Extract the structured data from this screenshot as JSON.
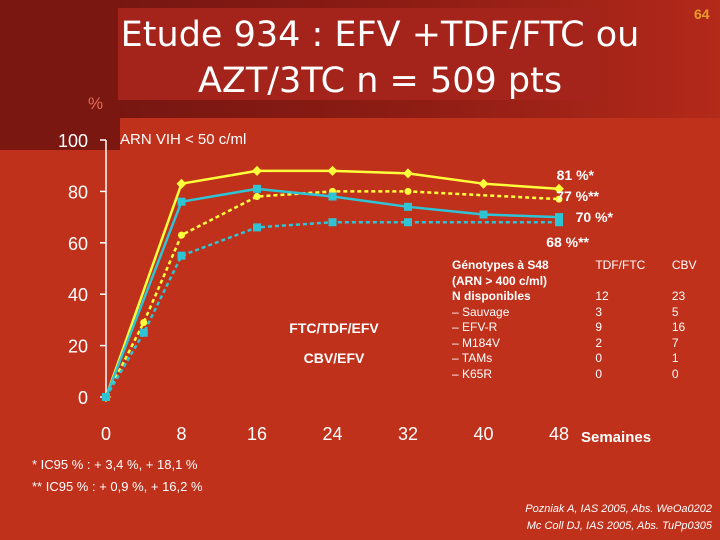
{
  "title": "Etude 934 : EFV +TDF/FTC ou AZT/3TC n = 509 pts",
  "slide_number": "64",
  "y_unit": "%",
  "subtitle": "ARN VIH < 50 c/ml",
  "colors": {
    "background": "#c0311c",
    "yellow": "#ffff3c",
    "cyan": "#2ec4d6"
  },
  "chart_data": {
    "type": "line",
    "x": [
      0,
      4,
      8,
      16,
      24,
      32,
      40,
      48
    ],
    "xticks": [
      "0",
      "8",
      "16",
      "24",
      "32",
      "40",
      "48"
    ],
    "xtick_values": [
      0,
      8,
      16,
      24,
      32,
      40,
      48
    ],
    "yticks": [
      "0",
      "20",
      "40",
      "60",
      "80",
      "100"
    ],
    "ylim": [
      0,
      100
    ],
    "xlim": [
      0,
      48
    ],
    "xlabel": "Semaines",
    "series": [
      {
        "values": [
          0,
          83,
          88,
          88,
          87,
          83,
          81
        ],
        "x": [
          0,
          8,
          16,
          24,
          32,
          40,
          48
        ],
        "color": "#ffff3c",
        "dash": false,
        "marker": "diamond"
      },
      {
        "values": [
          0,
          29,
          63,
          78,
          80,
          80,
          77
        ],
        "x": [
          0,
          4,
          8,
          16,
          24,
          32,
          48
        ],
        "color": "#ffff3c",
        "dash": true,
        "marker": "circle"
      },
      {
        "values": [
          0,
          76,
          81,
          78,
          74,
          71,
          70
        ],
        "x": [
          0,
          8,
          16,
          24,
          32,
          40,
          48
        ],
        "color": "#2ec4d6",
        "dash": false,
        "marker": "square"
      },
      {
        "values": [
          0,
          25,
          55,
          66,
          68,
          68,
          68
        ],
        "x": [
          0,
          4,
          8,
          16,
          24,
          32,
          48
        ],
        "color": "#2ec4d6",
        "dash": true,
        "marker": "square"
      }
    ],
    "line_labels": [
      "FTC/TDF/EFV",
      "CBV/EFV"
    ],
    "end_labels": [
      "81 %*",
      "77 %**",
      "70 %*",
      "68 %**"
    ]
  },
  "genotypes": {
    "header": [
      "Génotypes à S48 (ARN > 400 c/ml)",
      "TDF/FTC",
      "CBV"
    ],
    "rows": [
      [
        "N disponibles",
        "12",
        "23"
      ],
      [
        "– Sauvage",
        "3",
        "5"
      ],
      [
        "– EFV-R",
        "9",
        "16"
      ],
      [
        "– M184V",
        "2",
        "7"
      ],
      [
        "– TAMs",
        "0",
        "1"
      ],
      [
        "– K65R",
        "0",
        "0"
      ]
    ]
  },
  "footnotes": [
    "* IC95 % : + 3,4 %, + 18,1 %",
    "** IC95 % : + 0,9 %, + 16,2 %"
  ],
  "references": [
    "Pozniak A, IAS 2005, Abs. WeOa0202",
    "Mc Coll DJ, IAS 2005, Abs. TuPp0305"
  ]
}
